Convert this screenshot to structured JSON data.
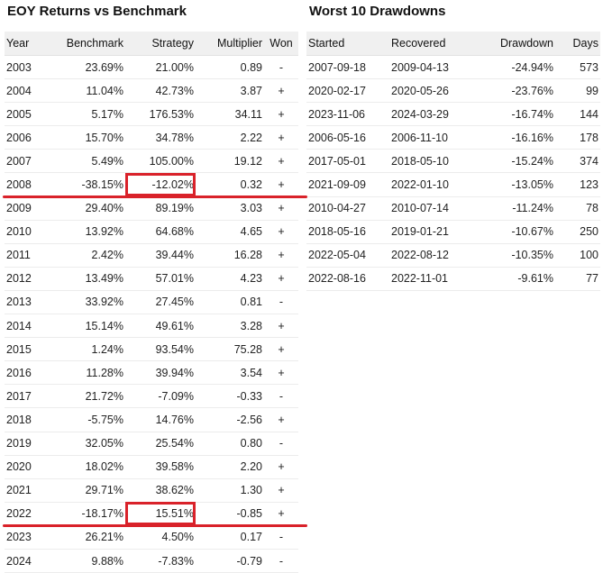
{
  "eoy": {
    "title": "EOY Returns vs Benchmark",
    "columns": [
      "Year",
      "Benchmark",
      "Strategy",
      "Multiplier",
      "Won"
    ],
    "rows": [
      {
        "year": "2003",
        "benchmark": "23.69%",
        "strategy": "21.00%",
        "multiplier": "0.89",
        "won": "-"
      },
      {
        "year": "2004",
        "benchmark": "11.04%",
        "strategy": "42.73%",
        "multiplier": "3.87",
        "won": "+"
      },
      {
        "year": "2005",
        "benchmark": "5.17%",
        "strategy": "176.53%",
        "multiplier": "34.11",
        "won": "+"
      },
      {
        "year": "2006",
        "benchmark": "15.70%",
        "strategy": "34.78%",
        "multiplier": "2.22",
        "won": "+"
      },
      {
        "year": "2007",
        "benchmark": "5.49%",
        "strategy": "105.00%",
        "multiplier": "19.12",
        "won": "+"
      },
      {
        "year": "2008",
        "benchmark": "-38.15%",
        "strategy": "-12.02%",
        "multiplier": "0.32",
        "won": "+",
        "highlight": true
      },
      {
        "year": "2009",
        "benchmark": "29.40%",
        "strategy": "89.19%",
        "multiplier": "3.03",
        "won": "+"
      },
      {
        "year": "2010",
        "benchmark": "13.92%",
        "strategy": "64.68%",
        "multiplier": "4.65",
        "won": "+"
      },
      {
        "year": "2011",
        "benchmark": "2.42%",
        "strategy": "39.44%",
        "multiplier": "16.28",
        "won": "+"
      },
      {
        "year": "2012",
        "benchmark": "13.49%",
        "strategy": "57.01%",
        "multiplier": "4.23",
        "won": "+"
      },
      {
        "year": "2013",
        "benchmark": "33.92%",
        "strategy": "27.45%",
        "multiplier": "0.81",
        "won": "-"
      },
      {
        "year": "2014",
        "benchmark": "15.14%",
        "strategy": "49.61%",
        "multiplier": "3.28",
        "won": "+"
      },
      {
        "year": "2015",
        "benchmark": "1.24%",
        "strategy": "93.54%",
        "multiplier": "75.28",
        "won": "+"
      },
      {
        "year": "2016",
        "benchmark": "11.28%",
        "strategy": "39.94%",
        "multiplier": "3.54",
        "won": "+"
      },
      {
        "year": "2017",
        "benchmark": "21.72%",
        "strategy": "-7.09%",
        "multiplier": "-0.33",
        "won": "-"
      },
      {
        "year": "2018",
        "benchmark": "-5.75%",
        "strategy": "14.76%",
        "multiplier": "-2.56",
        "won": "+"
      },
      {
        "year": "2019",
        "benchmark": "32.05%",
        "strategy": "25.54%",
        "multiplier": "0.80",
        "won": "-"
      },
      {
        "year": "2020",
        "benchmark": "18.02%",
        "strategy": "39.58%",
        "multiplier": "2.20",
        "won": "+"
      },
      {
        "year": "2021",
        "benchmark": "29.71%",
        "strategy": "38.62%",
        "multiplier": "1.30",
        "won": "+"
      },
      {
        "year": "2022",
        "benchmark": "-18.17%",
        "strategy": "15.51%",
        "multiplier": "-0.85",
        "won": "+",
        "highlight": true
      },
      {
        "year": "2023",
        "benchmark": "26.21%",
        "strategy": "4.50%",
        "multiplier": "0.17",
        "won": "-"
      },
      {
        "year": "2024",
        "benchmark": "9.88%",
        "strategy": "-7.83%",
        "multiplier": "-0.79",
        "won": "-"
      }
    ]
  },
  "drawdowns": {
    "title": "Worst 10 Drawdowns",
    "columns": [
      "Started",
      "Recovered",
      "Drawdown",
      "Days"
    ],
    "rows": [
      {
        "started": "2007-09-18",
        "recovered": "2009-04-13",
        "drawdown": "-24.94%",
        "days": "573"
      },
      {
        "started": "2020-02-17",
        "recovered": "2020-05-26",
        "drawdown": "-23.76%",
        "days": "99"
      },
      {
        "started": "2023-11-06",
        "recovered": "2024-03-29",
        "drawdown": "-16.74%",
        "days": "144"
      },
      {
        "started": "2006-05-16",
        "recovered": "2006-11-10",
        "drawdown": "-16.16%",
        "days": "178"
      },
      {
        "started": "2017-05-01",
        "recovered": "2018-05-10",
        "drawdown": "-15.24%",
        "days": "374"
      },
      {
        "started": "2021-09-09",
        "recovered": "2022-01-10",
        "drawdown": "-13.05%",
        "days": "123"
      },
      {
        "started": "2010-04-27",
        "recovered": "2010-07-14",
        "drawdown": "-11.24%",
        "days": "78"
      },
      {
        "started": "2018-05-16",
        "recovered": "2019-01-21",
        "drawdown": "-10.67%",
        "days": "250"
      },
      {
        "started": "2022-05-04",
        "recovered": "2022-08-12",
        "drawdown": "-10.35%",
        "days": "100"
      },
      {
        "started": "2022-08-16",
        "recovered": "2022-11-01",
        "drawdown": "-9.61%",
        "days": "77"
      }
    ]
  },
  "colors": {
    "highlight": "#d9222a",
    "header_bg": "#f0f0f0"
  }
}
